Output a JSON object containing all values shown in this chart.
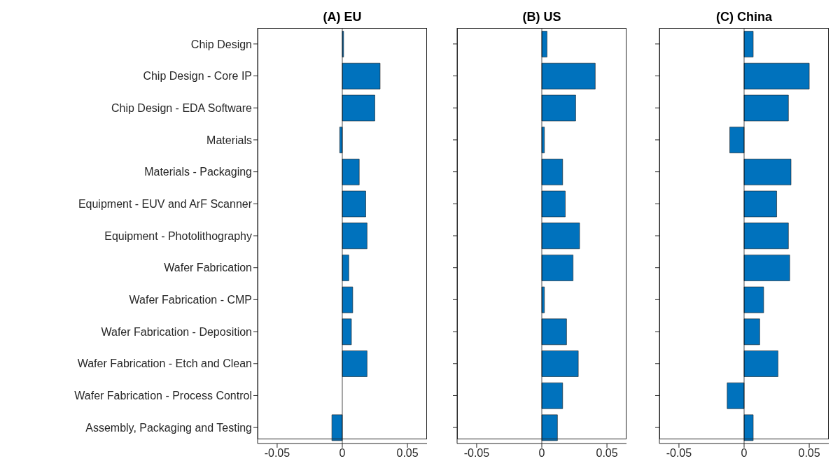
{
  "chart_data": [
    {
      "type": "bar",
      "orientation": "horizontal",
      "title": "(A) EU",
      "categories": [
        "Chip Design",
        "Chip Design - Core IP",
        "Chip Design - EDA Software",
        "Materials",
        "Materials - Packaging",
        "Equipment - EUV and ArF Scanner",
        "Equipment - Photolithography",
        "Wafer Fabrication",
        "Wafer Fabrication - CMP",
        "Wafer Fabrication - Deposition",
        "Wafer Fabrication - Etch and Clean",
        "Wafer Fabrication - Process Control",
        "Assembly, Packaging and Testing"
      ],
      "series": [
        {
          "color": "#0072bd",
          "values": [
            0.001,
            0.029,
            0.025,
            -0.002,
            0.013,
            0.018,
            0.019,
            0.005,
            0.008,
            0.007,
            0.019,
            null,
            -0.008
          ]
        }
      ],
      "xlim": [
        -0.065,
        0.065
      ],
      "xticks": [
        -0.05,
        0,
        0.05
      ],
      "grid": false,
      "ref_lines": [
        {
          "axis": "x",
          "value": 0,
          "color": "#000000"
        }
      ]
    },
    {
      "type": "bar",
      "orientation": "horizontal",
      "title": "(B) US",
      "categories": [
        null,
        null,
        null,
        null,
        null,
        null,
        null,
        null,
        null,
        null,
        null,
        null,
        null
      ],
      "series": [
        {
          "color": "#0072bd",
          "values": [
            0.004,
            0.041,
            0.026,
            0.002,
            0.016,
            0.018,
            0.029,
            0.024,
            0.002,
            0.019,
            0.028,
            0.016,
            0.012
          ]
        }
      ],
      "xlim": [
        -0.065,
        0.065
      ],
      "xticks": [
        -0.05,
        0,
        0.05
      ],
      "grid": false,
      "tick_labels": "x",
      "ref_lines": [
        {
          "axis": "x",
          "value": 0,
          "color": "#000000"
        }
      ]
    },
    {
      "type": "bar",
      "orientation": "horizontal",
      "title": "(C) China",
      "categories": [
        null,
        null,
        null,
        null,
        null,
        null,
        null,
        null,
        null,
        null,
        null,
        null,
        null
      ],
      "series": [
        {
          "color": "#0072bd",
          "values": [
            0.007,
            0.05,
            0.034,
            -0.011,
            0.036,
            0.025,
            0.034,
            0.035,
            0.015,
            0.012,
            0.026,
            -0.013,
            0.007
          ]
        }
      ],
      "xlim": [
        -0.065,
        0.065
      ],
      "xticks": [
        -0.05,
        0,
        0.05
      ],
      "grid": false,
      "tick_labels": "x",
      "ref_lines": [
        {
          "axis": "x",
          "value": 0,
          "color": "#000000"
        }
      ]
    }
  ]
}
